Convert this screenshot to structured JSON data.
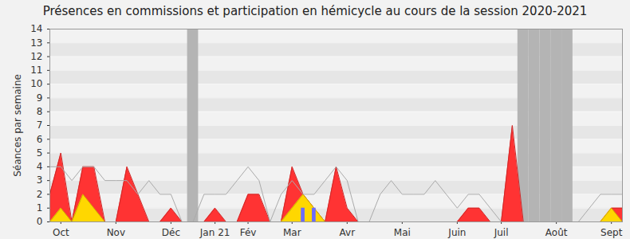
{
  "chart_data": {
    "type": "area",
    "title": "Présences en commissions et participation en hémicycle au cours de la session 2020-2021",
    "y_label": "Séances par semaine",
    "categories": [
      null,
      "Oct",
      null,
      null,
      null,
      null,
      "Nov",
      null,
      null,
      null,
      null,
      "Déc",
      null,
      null,
      null,
      "Jan 21",
      null,
      null,
      "Fév",
      null,
      null,
      null,
      "Mar",
      null,
      null,
      null,
      null,
      "Avr",
      null,
      null,
      null,
      null,
      "Mai",
      null,
      null,
      null,
      null,
      "Juin",
      null,
      null,
      null,
      "Juil",
      null,
      null,
      null,
      null,
      "Août",
      null,
      null,
      null,
      null,
      "Sept",
      null
    ],
    "series": [
      {
        "type": "area",
        "color": "#ff3333",
        "values": [
          2,
          5,
          0,
          4,
          4,
          0,
          0,
          4,
          2,
          0,
          0,
          1,
          0,
          0,
          0,
          1,
          0,
          0,
          2,
          2,
          0,
          0,
          4,
          2,
          1,
          0,
          4,
          1,
          0,
          0,
          0,
          0,
          0,
          0,
          0,
          0,
          0,
          0,
          1,
          1,
          0,
          0,
          7,
          0,
          0,
          0,
          0,
          0,
          0,
          0,
          0,
          1,
          1
        ]
      },
      {
        "type": "area",
        "color": "#ffd700",
        "values": [
          0,
          1,
          0,
          2,
          1,
          0,
          0,
          0,
          0,
          0,
          0,
          0,
          0,
          0,
          0,
          0,
          0,
          0,
          0,
          0,
          0,
          0,
          1,
          2,
          1,
          0,
          0,
          0,
          0,
          0,
          0,
          0,
          0,
          0,
          0,
          0,
          0,
          0,
          0,
          0,
          0,
          0,
          0,
          0,
          0,
          0,
          0,
          0,
          0,
          0,
          0,
          1,
          0
        ]
      },
      {
        "type": "bar",
        "color": "#6b6bff",
        "values": [
          0,
          0,
          0,
          0,
          0,
          0,
          0,
          0,
          0,
          0,
          0,
          0,
          0,
          0,
          0,
          0,
          0,
          0,
          0,
          0,
          0,
          0,
          0,
          1,
          1,
          0,
          0,
          0,
          0,
          0,
          0,
          0,
          0,
          0,
          0,
          0,
          0,
          0,
          0,
          0,
          0,
          0,
          0,
          0,
          0,
          0,
          0,
          0,
          0,
          0,
          0,
          0,
          0
        ]
      },
      {
        "type": "line",
        "color": "#aaaaaa",
        "values": [
          4,
          4,
          3,
          4,
          4,
          3,
          3,
          3,
          2,
          3,
          2,
          2,
          0,
          0,
          2,
          2,
          2,
          3,
          4,
          3,
          0,
          2,
          3,
          2,
          2,
          3,
          4,
          3,
          0,
          0,
          2,
          3,
          2,
          2,
          2,
          3,
          2,
          1,
          2,
          2,
          1,
          0,
          0,
          0,
          0,
          0,
          0,
          0,
          0,
          1,
          2,
          2,
          2
        ]
      }
    ],
    "shaded": [
      13,
      43,
      44,
      45,
      46,
      47
    ],
    "ylim": [
      0,
      14
    ],
    "yticks": [
      0,
      1,
      2,
      3,
      4,
      5,
      6,
      7,
      8,
      9,
      10,
      11,
      12,
      13,
      14
    ],
    "grid": true
  }
}
